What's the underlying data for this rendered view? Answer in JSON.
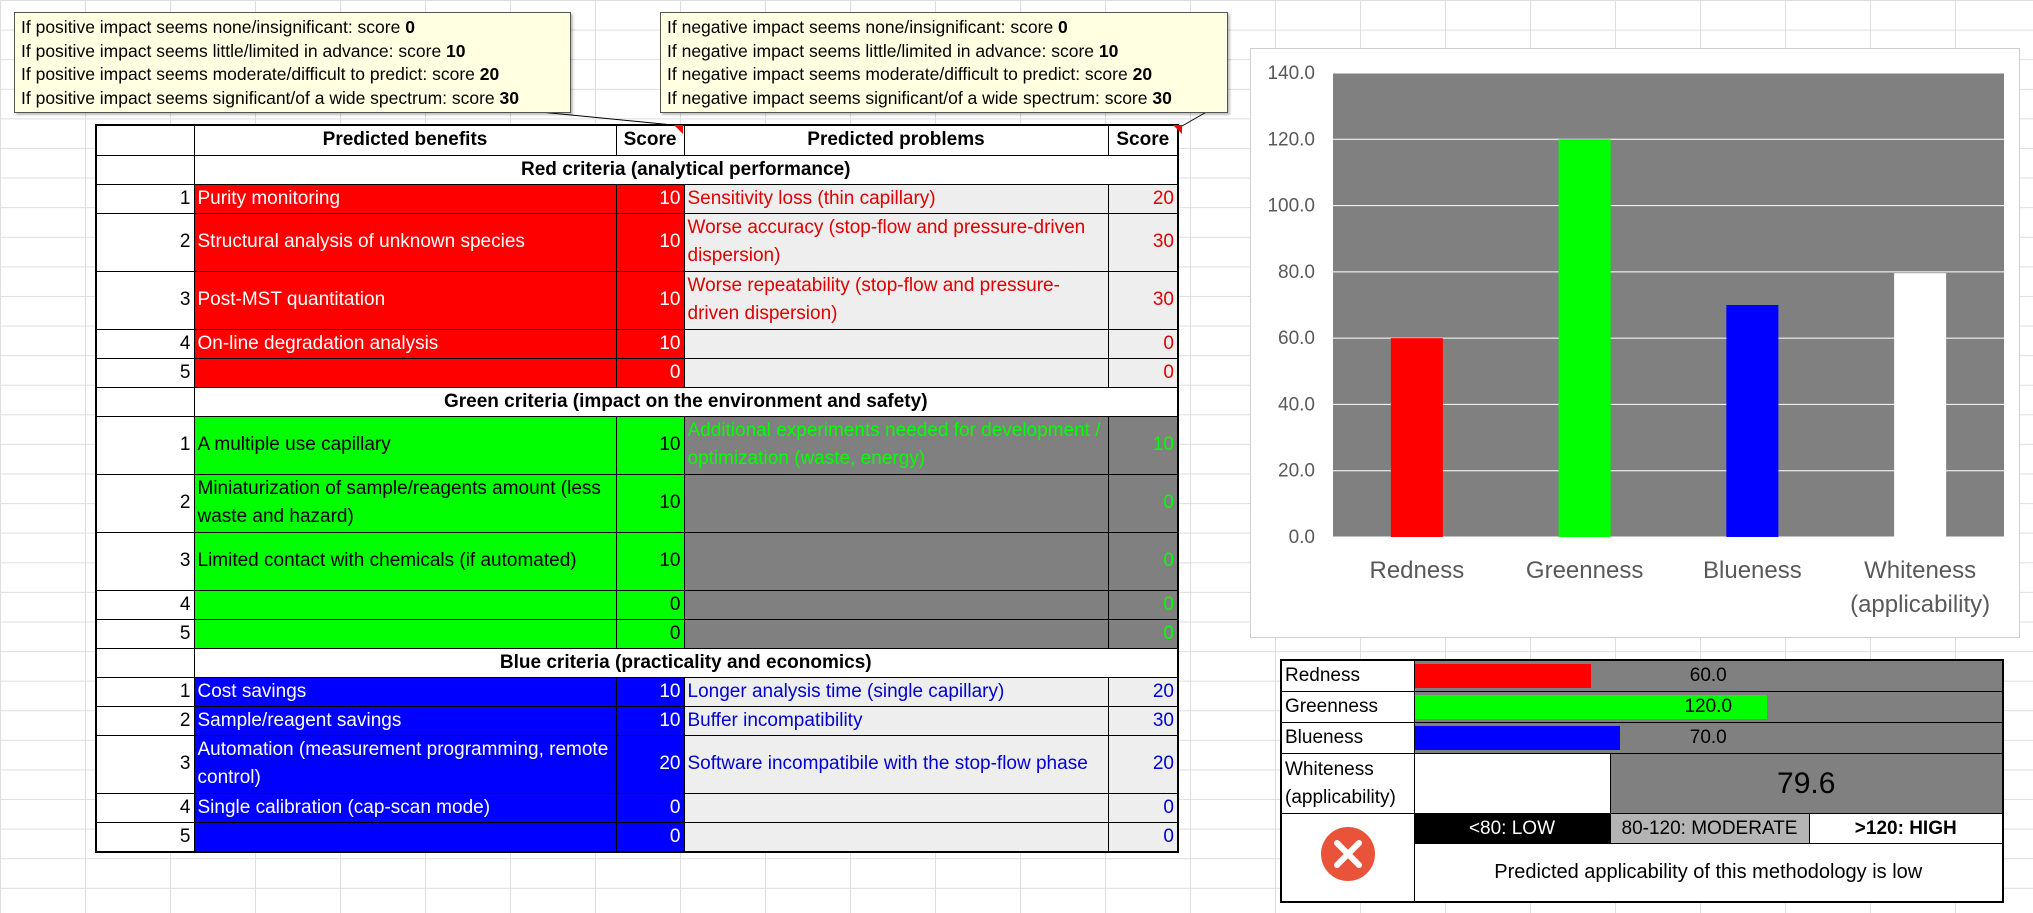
{
  "notes": {
    "positive": [
      {
        "text": "If positive impact seems none/insignificant: score ",
        "score": "0"
      },
      {
        "text": "If positive impact seems little/limited in advance: score ",
        "score": "10"
      },
      {
        "text": "If positive impact seems moderate/difficult to predict: score ",
        "score": "20"
      },
      {
        "text": "If positive impact seems significant/of a wide spectrum: score ",
        "score": "30"
      }
    ],
    "negative": [
      {
        "text": "If negative impact seems none/insignificant: score ",
        "score": "0"
      },
      {
        "text": "If negative impact seems little/limited in advance: score ",
        "score": "10"
      },
      {
        "text": "If negative impact seems moderate/difficult to predict: score ",
        "score": "20"
      },
      {
        "text": "If negative impact seems significant/of a wide spectrum: score ",
        "score": "30"
      }
    ]
  },
  "table": {
    "headers": {
      "benefits": "Predicted benefits",
      "score1": "Score",
      "problems": "Predicted problems",
      "score2": "Score"
    },
    "sections": {
      "red": {
        "title": "Red criteria (analytical performance)",
        "rows": [
          {
            "n": "1",
            "benefit": "Purity monitoring",
            "bscore": "10",
            "problem": "Sensitivity loss (thin capillary)",
            "pscore": "20"
          },
          {
            "n": "2",
            "benefit": "Structural analysis of unknown species",
            "bscore": "10",
            "problem": "Worse accuracy (stop-flow and pressure-driven dispersion)",
            "pscore": "30"
          },
          {
            "n": "3",
            "benefit": "Post-MST quantitation",
            "bscore": "10",
            "problem": "Worse repeatability (stop-flow and pressure-driven dispersion)",
            "pscore": "30"
          },
          {
            "n": "4",
            "benefit": "On-line degradation analysis",
            "bscore": "10",
            "problem": "",
            "pscore": "0"
          },
          {
            "n": "5",
            "benefit": "",
            "bscore": "0",
            "problem": "",
            "pscore": "0"
          }
        ]
      },
      "green": {
        "title": "Green criteria (impact on the environment and safety)",
        "rows": [
          {
            "n": "1",
            "benefit": "A multiple use capillary",
            "bscore": "10",
            "problem": "Additional experiments needed for development / optimization (waste, energy)",
            "pscore": "10"
          },
          {
            "n": "2",
            "benefit": "Miniaturization of sample/reagents amount (less waste and hazard)",
            "bscore": "10",
            "problem": "",
            "pscore": "0"
          },
          {
            "n": "3",
            "benefit": "Limited contact with chemicals (if automated)",
            "bscore": "10",
            "problem": "",
            "pscore": "0"
          },
          {
            "n": "4",
            "benefit": "",
            "bscore": "0",
            "problem": "",
            "pscore": "0"
          },
          {
            "n": "5",
            "benefit": "",
            "bscore": "0",
            "problem": "",
            "pscore": "0"
          }
        ]
      },
      "blue": {
        "title": "Blue criteria (practicality and economics)",
        "rows": [
          {
            "n": "1",
            "benefit": "Cost savings",
            "bscore": "10",
            "problem": "Longer analysis time (single capillary)",
            "pscore": "20"
          },
          {
            "n": "2",
            "benefit": "Sample/reagent savings",
            "bscore": "10",
            "problem": "Buffer incompatibility",
            "pscore": "30"
          },
          {
            "n": "3",
            "benefit": "Automation (measurement programming, remote control)",
            "bscore": "20",
            "problem": "Software incompatibile with the stop-flow phase",
            "pscore": "20"
          },
          {
            "n": "4",
            "benefit": "Single calibration (cap-scan mode)",
            "bscore": "0",
            "problem": "",
            "pscore": "0"
          },
          {
            "n": "5",
            "benefit": "",
            "bscore": "0",
            "problem": "",
            "pscore": "0"
          }
        ]
      }
    }
  },
  "chart_data": {
    "type": "bar",
    "categories": [
      "Redness",
      "Greenness",
      "Blueness",
      "Whiteness (applicability)"
    ],
    "values": [
      60,
      120,
      70,
      79.6
    ],
    "colors": [
      "#ff0000",
      "#00ff00",
      "#0000ff",
      "#ffffff"
    ],
    "ylim": [
      0,
      140
    ],
    "yticks": [
      "0.0",
      "20.0",
      "40.0",
      "60.0",
      "80.0",
      "100.0",
      "120.0",
      "140.0"
    ],
    "plot_background": "#808080",
    "grid": true,
    "legend": "none"
  },
  "summary": {
    "rows": [
      {
        "label": "Redness",
        "value": 60.0,
        "display": "60.0",
        "color": "#ff0000"
      },
      {
        "label": "Greenness",
        "value": 120.0,
        "display": "120.0",
        "color": "#00ff00"
      },
      {
        "label": "Blueness",
        "value": 70.0,
        "display": "70.0",
        "color": "#0000ff"
      }
    ],
    "bar_max": 200,
    "whiteness_label_1": "Whiteness",
    "whiteness_label_2": "(applicability)",
    "whiteness_value": "79.6",
    "legend_low": "<80: LOW",
    "legend_moderate": "80-120: MODERATE",
    "legend_high": ">120: HIGH",
    "verdict": "Predicted applicability of this methodology is low",
    "verdict_icon": "error-x-icon",
    "verdict_icon_color": "#e8533a"
  }
}
